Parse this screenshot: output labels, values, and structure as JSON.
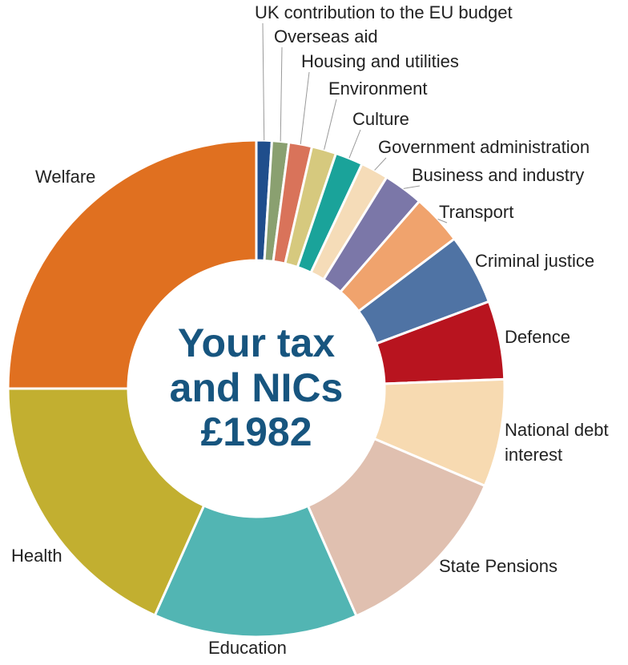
{
  "chart_data": {
    "type": "donut",
    "center_text": [
      "Your tax",
      "and NICs",
      "£1982"
    ],
    "categories": [
      "UK contribution to the EU budget",
      "Overseas aid",
      "Housing and utilities",
      "Environment",
      "Culture",
      "Government administration",
      "Business and industry",
      "Transport",
      "Criminal justice",
      "Defence",
      "National debt interest",
      "State Pensions",
      "Education",
      "Health",
      "Welfare"
    ],
    "values": [
      1.0,
      1.1,
      1.5,
      1.6,
      1.8,
      1.8,
      2.6,
      3.3,
      4.6,
      5.1,
      7.0,
      12.0,
      13.3,
      18.3,
      25.0
    ],
    "colors": [
      "#1f4e8c",
      "#8aa070",
      "#d9735a",
      "#d6c97e",
      "#1aa39a",
      "#f5dcb8",
      "#7b77a8",
      "#f0a36d",
      "#4f73a4",
      "#b8141f",
      "#f7dab1",
      "#e0c0b0",
      "#52b5b3",
      "#c2af30",
      "#e07020"
    ]
  }
}
